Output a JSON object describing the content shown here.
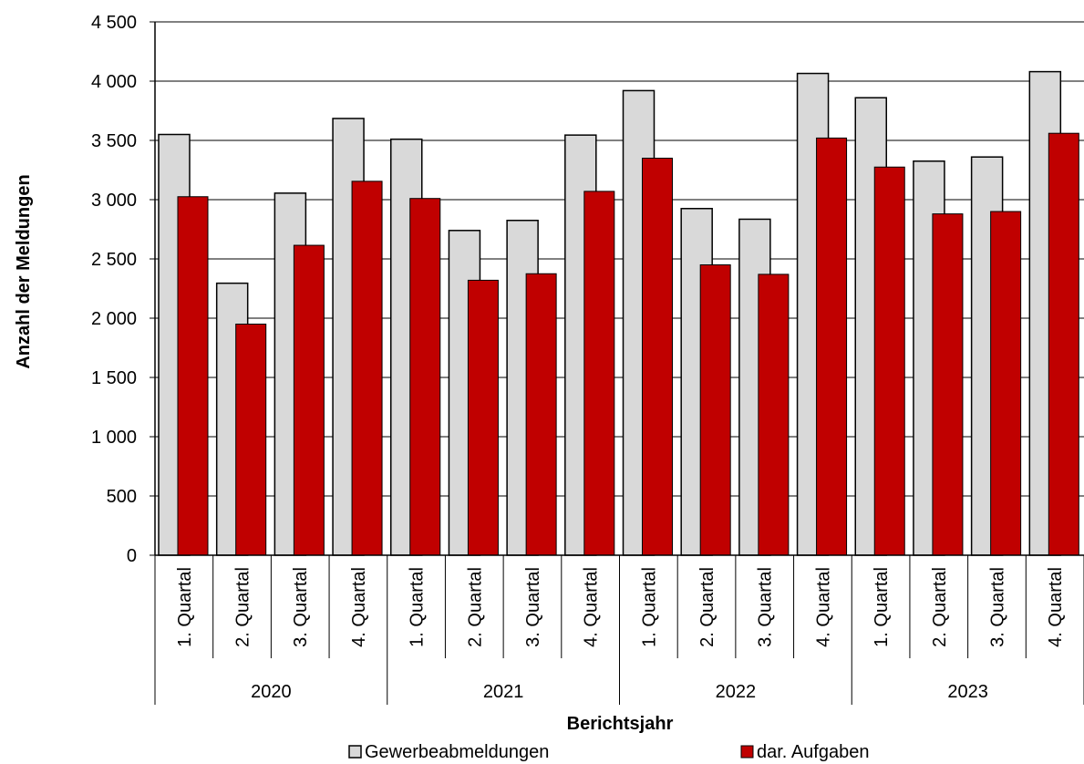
{
  "chart_data": {
    "type": "bar",
    "title": "",
    "xlabel": "Berichtsjahr",
    "ylabel": "Anzahl der Meldungen",
    "ylim": [
      0,
      4500
    ],
    "ytick_step": 500,
    "ytick_labels": [
      "0",
      "500",
      "1 000",
      "1 500",
      "2 000",
      "2 500",
      "3 000",
      "3 500",
      "4 000",
      "4 500"
    ],
    "years": [
      "2020",
      "2021",
      "2022",
      "2023"
    ],
    "quarters": [
      "1. Quartal",
      "2. Quartal",
      "3. Quartal",
      "4. Quartal"
    ],
    "categories": [
      "2020 1. Quartal",
      "2020 2. Quartal",
      "2020 3. Quartal",
      "2020 4. Quartal",
      "2021 1. Quartal",
      "2021 2. Quartal",
      "2021 3. Quartal",
      "2021 4. Quartal",
      "2022 1. Quartal",
      "2022 2. Quartal",
      "2022 3. Quartal",
      "2022 4. Quartal",
      "2023 1. Quartal",
      "2023 2. Quartal",
      "2023 3. Quartal",
      "2023 4. Quartal"
    ],
    "series": [
      {
        "name": "Gewerbeabmeldungen",
        "color": "#d9d9d9",
        "values": [
          3550,
          2295,
          3055,
          3685,
          3510,
          2740,
          2825,
          3545,
          3920,
          2925,
          2835,
          4065,
          3860,
          3325,
          3360,
          4080
        ]
      },
      {
        "name": "dar. Aufgaben",
        "color": "#c00000",
        "values": [
          3025,
          1950,
          2615,
          3155,
          3010,
          2320,
          2375,
          3070,
          3350,
          2450,
          2370,
          3520,
          3275,
          2880,
          2900,
          3560
        ]
      }
    ],
    "grid": true,
    "legend": "bottom"
  }
}
